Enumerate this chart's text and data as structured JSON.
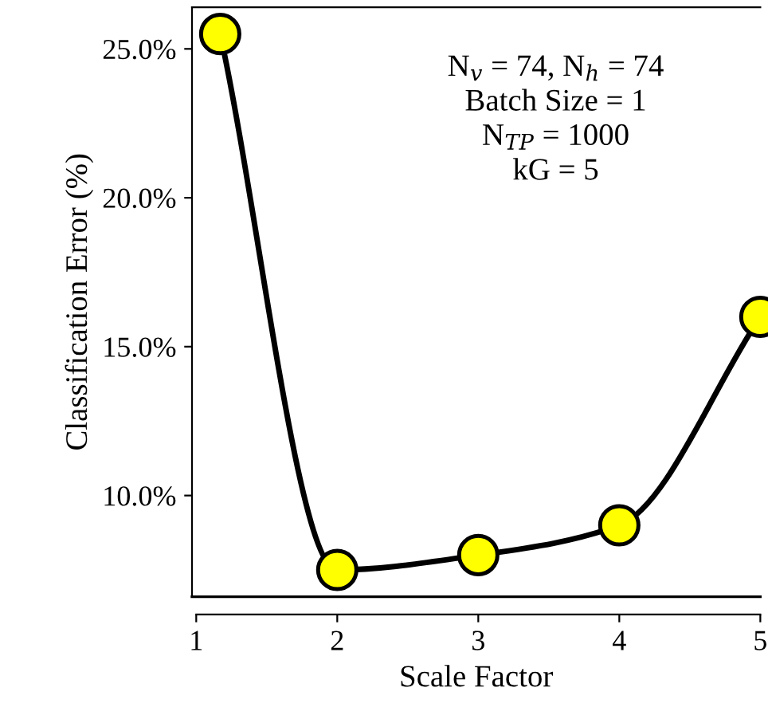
{
  "chart_data": {
    "type": "line",
    "xlabel": "Scale Factor",
    "ylabel": "Classification Error (%)",
    "x": [
      1.17,
      2,
      3,
      4,
      5
    ],
    "series": [
      {
        "color": "#000000",
        "colors": [
          "#ffff00",
          "#ffff00",
          "#ffff00",
          "#ffff00",
          "#ffff00"
        ],
        "values": [
          25.5,
          7.5,
          8.0,
          9.0,
          16.0
        ]
      }
    ],
    "xlim": [
      0.97,
      5.0
    ],
    "ylim": [
      6.6,
      26.4
    ],
    "xticks": [
      1,
      2,
      3,
      4,
      5
    ],
    "yticks": [
      {
        "value": 10,
        "label": "10.0%"
      },
      {
        "value": 15,
        "label": "15.0%"
      },
      {
        "value": 20,
        "label": "20.0%"
      },
      {
        "value": 25,
        "label": "25.0%"
      }
    ],
    "marker": "circle",
    "line_style": "solid",
    "grid": false,
    "legend": false,
    "annotations": [
      "N$_{v}$ = 74, N$_{h}$ = 74\nBatch Size = 1\nN$_{TP}$ = 1000\nkG = 5"
    ]
  }
}
